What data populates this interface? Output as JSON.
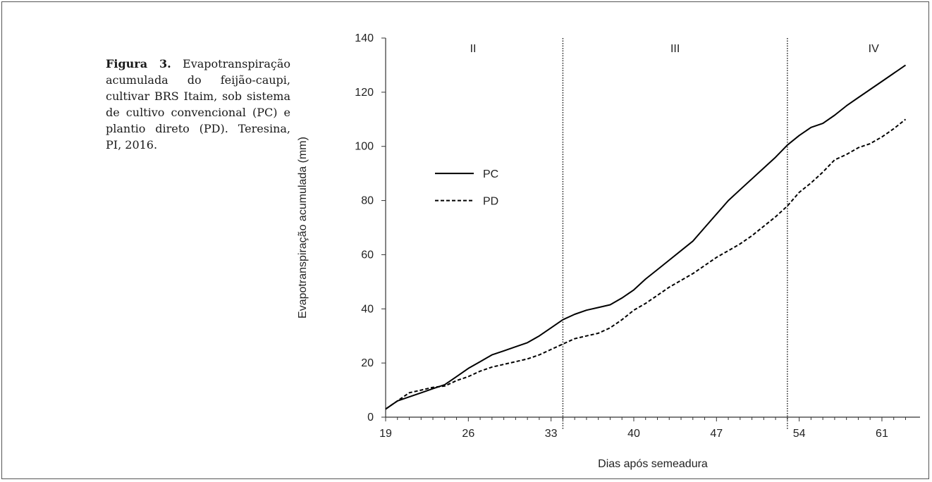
{
  "caption": {
    "label": "Figura 3.",
    "text": "Evapotranspiração acumulada do feijão-caupi, cultivar BRS Itaim, sob sistema de cultivo convencional (PC) e plantio direto (PD). Teresina, PI, 2016."
  },
  "chart_data": {
    "type": "line",
    "xlabel": "Dias após semeadura",
    "ylabel": "Evapotranspiração acumulada (mm)",
    "xlim": [
      19,
      65
    ],
    "ylim": [
      0,
      140
    ],
    "xticks": [
      19,
      26,
      33,
      40,
      47,
      54,
      61
    ],
    "yticks": [
      0,
      20,
      40,
      60,
      80,
      100,
      120,
      140
    ],
    "grid": false,
    "legend_position": "left",
    "phase_dividers": [
      34,
      53
    ],
    "phases": [
      {
        "label": "II",
        "x": 26.4
      },
      {
        "label": "III",
        "x": 43.5
      },
      {
        "label": "IV",
        "x": 60.3
      }
    ],
    "series": [
      {
        "name": "PC",
        "style": "solid",
        "color": "#000000",
        "points": [
          [
            19,
            3
          ],
          [
            20,
            6
          ],
          [
            21,
            7.5
          ],
          [
            22,
            9
          ],
          [
            23,
            10.5
          ],
          [
            24,
            12
          ],
          [
            25,
            15
          ],
          [
            26,
            18
          ],
          [
            27,
            20.5
          ],
          [
            28,
            23
          ],
          [
            29,
            24.5
          ],
          [
            30,
            26
          ],
          [
            31,
            27.5
          ],
          [
            32,
            30
          ],
          [
            33,
            33
          ],
          [
            34,
            36
          ],
          [
            35,
            38
          ],
          [
            36,
            39.5
          ],
          [
            37,
            40.5
          ],
          [
            38,
            41.5
          ],
          [
            39,
            44
          ],
          [
            40,
            47
          ],
          [
            41,
            51
          ],
          [
            42,
            54.5
          ],
          [
            43,
            58
          ],
          [
            44,
            61.5
          ],
          [
            45,
            65
          ],
          [
            46,
            70
          ],
          [
            47,
            75
          ],
          [
            48,
            80
          ],
          [
            49,
            84
          ],
          [
            50,
            88
          ],
          [
            51,
            92
          ],
          [
            52,
            96
          ],
          [
            53,
            100.5
          ],
          [
            54,
            104
          ],
          [
            55,
            107
          ],
          [
            56,
            108.5
          ],
          [
            57,
            111.5
          ],
          [
            58,
            115
          ],
          [
            59,
            118
          ],
          [
            60,
            121
          ],
          [
            61,
            124
          ],
          [
            62,
            127
          ],
          [
            63,
            130
          ]
        ]
      },
      {
        "name": "PD",
        "style": "dashed",
        "color": "#000000",
        "points": [
          [
            19,
            3
          ],
          [
            20,
            6
          ],
          [
            21,
            9
          ],
          [
            22,
            10
          ],
          [
            23,
            11
          ],
          [
            24,
            11.5
          ],
          [
            25,
            13.5
          ],
          [
            26,
            15
          ],
          [
            27,
            17
          ],
          [
            28,
            18.5
          ],
          [
            29,
            19.5
          ],
          [
            30,
            20.5
          ],
          [
            31,
            21.5
          ],
          [
            32,
            23
          ],
          [
            33,
            25
          ],
          [
            34,
            27
          ],
          [
            35,
            29
          ],
          [
            36,
            30
          ],
          [
            37,
            31
          ],
          [
            38,
            33
          ],
          [
            39,
            36
          ],
          [
            40,
            39.5
          ],
          [
            41,
            42
          ],
          [
            42,
            45
          ],
          [
            43,
            48
          ],
          [
            44,
            50.5
          ],
          [
            45,
            53
          ],
          [
            46,
            56
          ],
          [
            47,
            59
          ],
          [
            48,
            61.5
          ],
          [
            49,
            64
          ],
          [
            50,
            67
          ],
          [
            51,
            70.5
          ],
          [
            52,
            74
          ],
          [
            53,
            78
          ],
          [
            54,
            83
          ],
          [
            55,
            86.5
          ],
          [
            56,
            90.5
          ],
          [
            57,
            95
          ],
          [
            58,
            97
          ],
          [
            59,
            99.5
          ],
          [
            60,
            101
          ],
          [
            61,
            103.5
          ],
          [
            62,
            106.5
          ],
          [
            63,
            110
          ]
        ]
      }
    ]
  }
}
